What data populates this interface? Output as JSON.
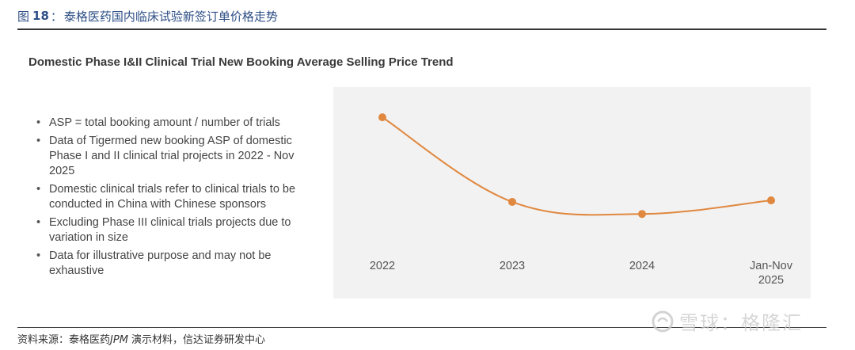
{
  "figure": {
    "label": "图",
    "number": "18",
    "separator": "：",
    "caption": "泰格医药国内临床试验新签订单价格走势"
  },
  "panel": {
    "title": "Domestic Phase I&II Clinical Trial New Booking Average Selling Price Trend"
  },
  "bullets": [
    "ASP = total booking amount / number of trials",
    "Data of Tigermed new booking ASP of domestic Phase I and II clinical trial projects in 2022 - Nov 2025",
    "Domestic clinical trials refer to clinical trials to be conducted in China with Chinese sponsors",
    "Excluding Phase III clinical trials projects due to variation in size",
    "Data for illustrative purpose and may not be exhaustive"
  ],
  "chart_data": {
    "type": "line",
    "categories": [
      "2022",
      "2023",
      "2024",
      "Jan-Nov 2025"
    ],
    "category_lines": [
      [
        "2022"
      ],
      [
        "2023"
      ],
      [
        "2024"
      ],
      [
        "Jan-Nov",
        "2025"
      ]
    ],
    "values": [
      100,
      72,
      68,
      72.5
    ],
    "ylim": [
      40,
      110
    ],
    "y_axis_shown": false,
    "grid": false,
    "legend": "none",
    "line_color": "#e0883f",
    "background": "#f2f2f2"
  },
  "source": {
    "prefix": "资料来源：泰格医药",
    "italic": "JPM",
    "suffix": " 演示材料，信达证券研发中心"
  },
  "watermark": {
    "text": "雪球：格隆汇"
  }
}
